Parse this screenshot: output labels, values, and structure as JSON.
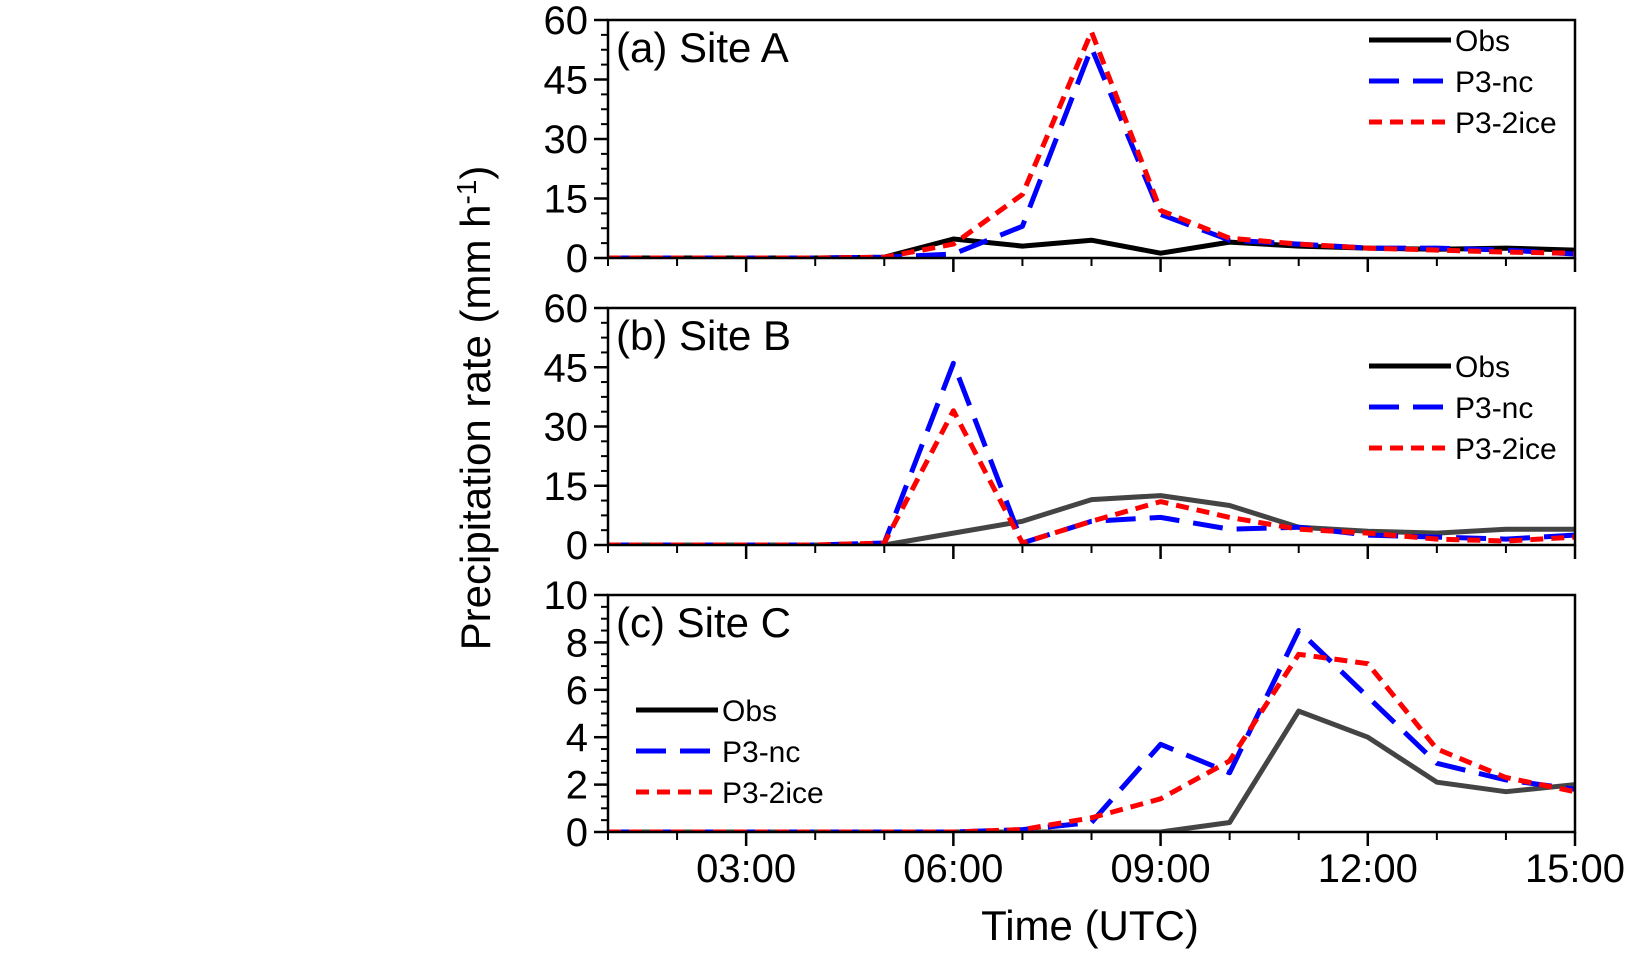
{
  "colors": {
    "obs": "#000000",
    "obs_c": "#444444",
    "p3nc": "#0000ff",
    "p32ice": "#ff0000"
  },
  "ylabel_main": "Precipitation rate (mm h",
  "ylabel_sup": "-1",
  "ylabel_close": ")",
  "xlabel": "Time (UTC)",
  "x_tick_labels": [
    "03:00",
    "06:00",
    "09:00",
    "12:00",
    "15:00"
  ],
  "chart_data": [
    {
      "type": "line",
      "title": "(a) Site A",
      "xlim": [
        1,
        15
      ],
      "ylim": [
        0,
        60
      ],
      "yticks": [
        "0",
        "15",
        "30",
        "45",
        "60"
      ],
      "legend_position": "top-right",
      "x": [
        1,
        2,
        3,
        4,
        5,
        6,
        7,
        8,
        9,
        10,
        11,
        12,
        13,
        14,
        15
      ],
      "series": [
        {
          "name": "Obs",
          "values": [
            0,
            0,
            0,
            0,
            0.2,
            4.8,
            3,
            4.5,
            1.2,
            4,
            3,
            2.5,
            2.2,
            2.5,
            2
          ]
        },
        {
          "name": "P3-nc",
          "values": [
            0,
            0,
            0,
            0,
            0.2,
            1,
            8,
            53,
            11,
            4.5,
            3.5,
            2.5,
            2.5,
            2,
            1
          ]
        },
        {
          "name": "P3-2ice",
          "values": [
            0,
            0,
            0,
            0,
            0.2,
            3.5,
            16,
            57,
            12,
            5,
            3.5,
            2.5,
            2,
            1.5,
            1.2
          ]
        }
      ]
    },
    {
      "type": "line",
      "title": "(b) Site B",
      "xlim": [
        1,
        15
      ],
      "ylim": [
        0,
        60
      ],
      "yticks": [
        "0",
        "15",
        "30",
        "45",
        "60"
      ],
      "legend_position": "right",
      "x": [
        1,
        2,
        3,
        4,
        5,
        6,
        7,
        8,
        9,
        10,
        11,
        12,
        13,
        14,
        15
      ],
      "series": [
        {
          "name": "Obs",
          "values": [
            0,
            0,
            0,
            0,
            0,
            3,
            6,
            11.5,
            12.5,
            10,
            4.5,
            3.5,
            3,
            4,
            4
          ]
        },
        {
          "name": "P3-nc",
          "values": [
            0,
            0,
            0,
            0,
            0.5,
            46,
            0.5,
            6,
            7,
            4,
            4.5,
            2.5,
            2,
            1.5,
            2.5
          ]
        },
        {
          "name": "P3-2ice",
          "values": [
            0,
            0,
            0,
            0,
            0.5,
            34,
            0.5,
            6,
            11,
            7,
            4,
            3,
            1.5,
            1,
            2
          ]
        }
      ]
    },
    {
      "type": "line",
      "title": "(c) Site C",
      "xlim": [
        1,
        15
      ],
      "ylim": [
        0,
        10
      ],
      "yticks": [
        "0",
        "2",
        "4",
        "6",
        "8",
        "10"
      ],
      "legend_position": "left",
      "x": [
        1,
        2,
        3,
        4,
        5,
        6,
        7,
        8,
        9,
        10,
        11,
        12,
        13,
        14,
        15
      ],
      "series": [
        {
          "name": "Obs",
          "values": [
            0,
            0,
            0,
            0,
            0,
            0,
            0,
            0,
            0,
            0.4,
            5.1,
            4,
            2.1,
            1.7,
            2
          ]
        },
        {
          "name": "P3-nc",
          "values": [
            0,
            0,
            0,
            0,
            0,
            0,
            0.1,
            0.4,
            3.7,
            2.5,
            8.5,
            5.7,
            2.9,
            2.2,
            1.8
          ]
        },
        {
          "name": "P3-2ice",
          "values": [
            0,
            0,
            0,
            0,
            0,
            0,
            0.1,
            0.6,
            1.4,
            3,
            7.5,
            7.1,
            3.5,
            2.3,
            1.7
          ]
        }
      ]
    }
  ]
}
